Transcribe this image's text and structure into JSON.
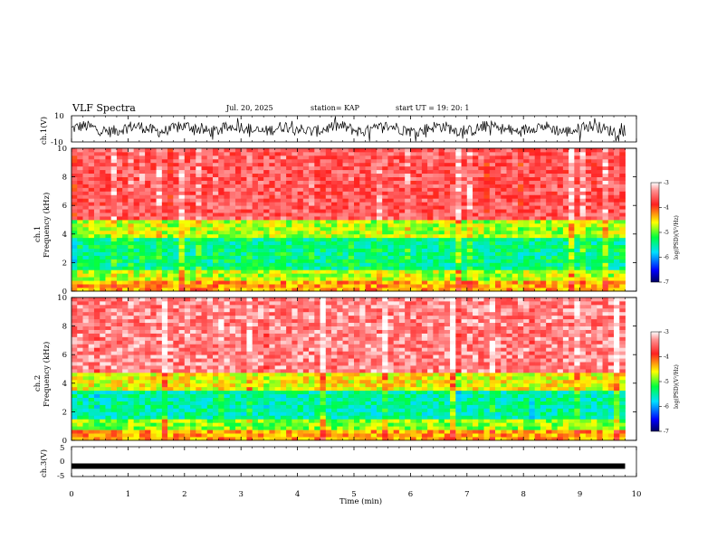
{
  "header": {
    "title": "VLF Spectra",
    "date": "Jul. 20, 2025",
    "station": "station= KAP",
    "start_ut": "start  UT =   19: 20: 1"
  },
  "chart_data": [
    {
      "type": "line",
      "id": "ch1-waveform",
      "ylabel": "ch.1(V)",
      "ylim": [
        -10,
        10
      ],
      "yticks": [
        "10",
        "-10"
      ],
      "xlim": [
        0,
        10
      ],
      "description_series": "broadband voltage trace oscillating roughly between -8 and +8 V over 0 to 9.8 min"
    },
    {
      "type": "heatmap",
      "id": "ch1-spectrogram",
      "ylabel": "ch.1\nFrequency (kHz)",
      "ylim": [
        0,
        10
      ],
      "yticks": [
        "0",
        "2",
        "4",
        "6",
        "8",
        "10"
      ],
      "xlim": [
        0,
        10
      ],
      "data_extent_min": 9.8,
      "bands": [
        {
          "from_khz": 0.0,
          "to_khz": 0.8,
          "level": -4.3
        },
        {
          "from_khz": 0.8,
          "to_khz": 1.5,
          "level": -4.8
        },
        {
          "from_khz": 1.5,
          "to_khz": 3.8,
          "level": -5.4
        },
        {
          "from_khz": 3.8,
          "to_khz": 5.0,
          "level": -4.8
        },
        {
          "from_khz": 5.0,
          "to_khz": 10.0,
          "level": -3.6
        }
      ],
      "colorbar": {
        "label": "log(PSD)(V²/Hz)",
        "ticks": [
          "-3",
          "-4",
          "-5",
          "-6",
          "-7"
        ],
        "range": [
          -7,
          -3
        ]
      }
    },
    {
      "type": "heatmap",
      "id": "ch2-spectrogram",
      "ylabel": "ch.2\nFrequency (kHz)",
      "ylim": [
        0,
        10
      ],
      "yticks": [
        "0",
        "2",
        "4",
        "6",
        "8",
        "10"
      ],
      "xlim": [
        0,
        10
      ],
      "data_extent_min": 9.8,
      "bands": [
        {
          "from_khz": 0.0,
          "to_khz": 0.8,
          "level": -4.3
        },
        {
          "from_khz": 0.8,
          "to_khz": 1.6,
          "level": -4.9
        },
        {
          "from_khz": 1.6,
          "to_khz": 3.6,
          "level": -5.5
        },
        {
          "from_khz": 3.6,
          "to_khz": 4.8,
          "level": -4.6
        },
        {
          "from_khz": 4.8,
          "to_khz": 10.0,
          "level": -3.4
        }
      ],
      "colorbar": {
        "label": "log(PSD)(V²/Hz)",
        "ticks": [
          "-3",
          "-4",
          "-5",
          "-6",
          "-7"
        ],
        "range": [
          -7,
          -3
        ]
      }
    },
    {
      "type": "line",
      "id": "ch3-waveform",
      "ylabel": "ch.3(V)",
      "ylim": [
        -5,
        5
      ],
      "yticks": [
        "5",
        "0",
        "-5"
      ],
      "xlim": [
        0,
        10
      ],
      "value": -1.5
    }
  ],
  "xaxis": {
    "label": "Time (min)",
    "ticks": [
      "0",
      "1",
      "2",
      "3",
      "4",
      "5",
      "6",
      "7",
      "8",
      "9",
      "10"
    ]
  },
  "colors": {
    "scale": [
      "#000080",
      "#0000ff",
      "#00ffff",
      "#00ff00",
      "#ffff00",
      "#ff0000",
      "#ffffff"
    ]
  }
}
